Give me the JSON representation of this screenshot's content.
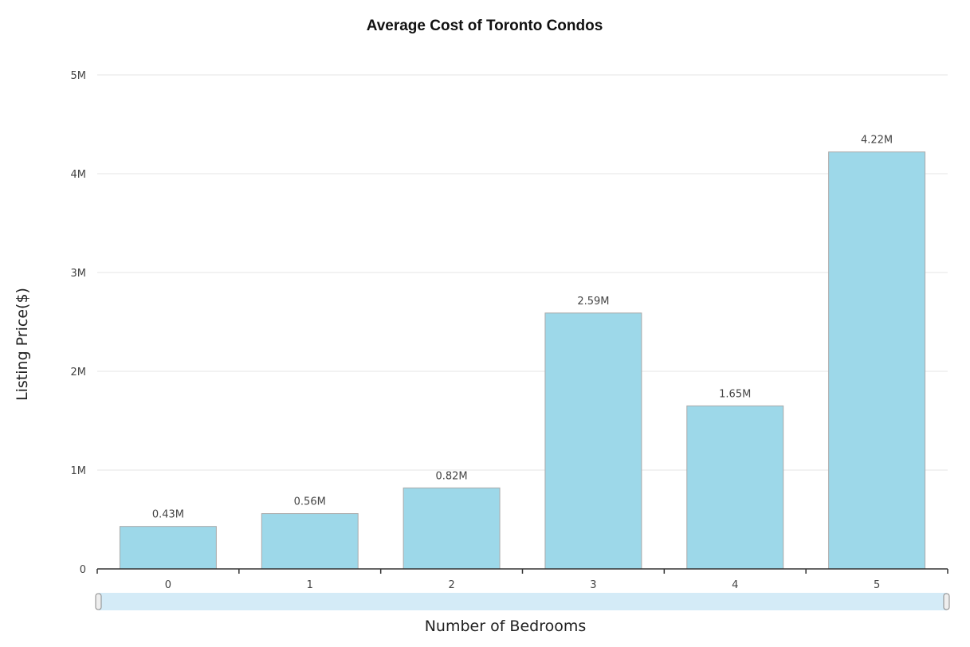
{
  "chart_data": {
    "type": "bar",
    "title": "Average Cost of Toronto Condos",
    "xlabel": "Number of Bedrooms",
    "ylabel": "Listing Price($)",
    "categories": [
      "0",
      "1",
      "2",
      "3",
      "4",
      "5"
    ],
    "values": [
      430000,
      560000,
      820000,
      2590000,
      1650000,
      4220000
    ],
    "data_labels": [
      "0.43M",
      "0.56M",
      "0.82M",
      "2.59M",
      "1.65M",
      "4.22M"
    ],
    "ylim": [
      0,
      5000000
    ],
    "yticks": [
      0,
      1000000,
      2000000,
      3000000,
      4000000,
      5000000
    ],
    "ytick_labels": [
      "0",
      "1M",
      "2M",
      "3M",
      "4M",
      "5M"
    ],
    "grid": true,
    "legend": "none",
    "colors": {
      "bar_fill": "#9dd8e9",
      "bar_stroke": "#a9a9a9",
      "grid": "#e6e6e6",
      "axis": "#333333",
      "scrollbar": "#d4ebf7"
    }
  }
}
